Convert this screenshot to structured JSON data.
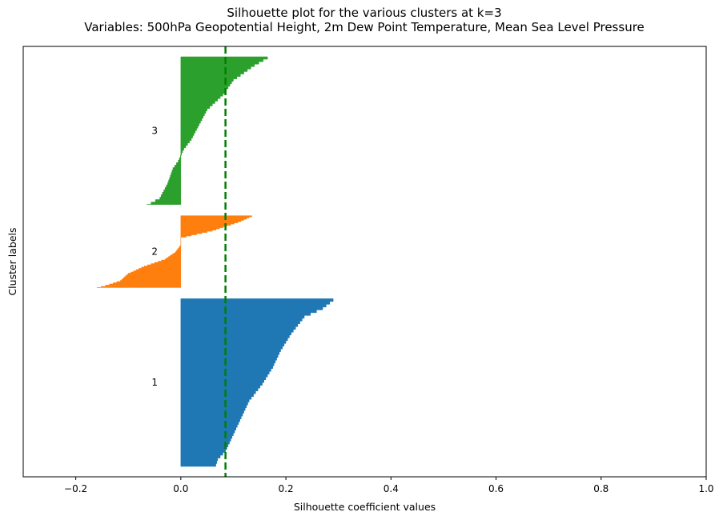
{
  "chart_data": {
    "type": "bar",
    "orientation": "horizontal",
    "title": "Silhouette plot for the various clusters at k=3",
    "subtitle": "Variables: 500hPa Geopotential Height, 2m Dew Point Temperature, Mean Sea Level Pressure",
    "xlabel": "Silhouette coefficient values",
    "ylabel": "Cluster labels",
    "xlim": [
      -0.3,
      1.0
    ],
    "xticks": [
      -0.2,
      0.0,
      0.2,
      0.4,
      0.6,
      0.8,
      1.0
    ],
    "xtick_labels": [
      "−0.2",
      "0.0",
      "0.2",
      "0.4",
      "0.6",
      "0.8",
      "1.0"
    ],
    "average_silhouette": 0.085,
    "clusters": [
      {
        "label": "1",
        "color": "#1f77b4",
        "size": 420,
        "profile": [
          [
            0,
            0.29
          ],
          [
            0.05,
            0.27
          ],
          [
            0.1,
            0.235
          ],
          [
            0.2,
            0.21
          ],
          [
            0.3,
            0.19
          ],
          [
            0.4,
            0.175
          ],
          [
            0.5,
            0.155
          ],
          [
            0.6,
            0.13
          ],
          [
            0.7,
            0.115
          ],
          [
            0.8,
            0.1
          ],
          [
            0.9,
            0.085
          ],
          [
            0.95,
            0.07
          ],
          [
            1.0,
            0.065
          ]
        ]
      },
      {
        "label": "2",
        "color": "#ff7f0e",
        "size": 180,
        "profile": [
          [
            0,
            0.135
          ],
          [
            0.08,
            0.11
          ],
          [
            0.2,
            0.06
          ],
          [
            0.3,
            0.0
          ],
          [
            0.4,
            0.0
          ],
          [
            0.5,
            -0.01
          ],
          [
            0.6,
            -0.03
          ],
          [
            0.7,
            -0.07
          ],
          [
            0.8,
            -0.1
          ],
          [
            0.9,
            -0.115
          ],
          [
            0.96,
            -0.14
          ],
          [
            1.0,
            -0.16
          ]
        ]
      },
      {
        "label": "3",
        "color": "#2ca02c",
        "size": 370,
        "profile": [
          [
            0,
            0.165
          ],
          [
            0.05,
            0.14
          ],
          [
            0.15,
            0.1
          ],
          [
            0.25,
            0.08
          ],
          [
            0.35,
            0.05
          ],
          [
            0.45,
            0.035
          ],
          [
            0.55,
            0.02
          ],
          [
            0.62,
            0.005
          ],
          [
            0.7,
            -0.005
          ],
          [
            0.75,
            -0.015
          ],
          [
            0.85,
            -0.025
          ],
          [
            0.95,
            -0.04
          ],
          [
            1.0,
            -0.065
          ]
        ]
      }
    ],
    "average_line_color": "#008000"
  }
}
